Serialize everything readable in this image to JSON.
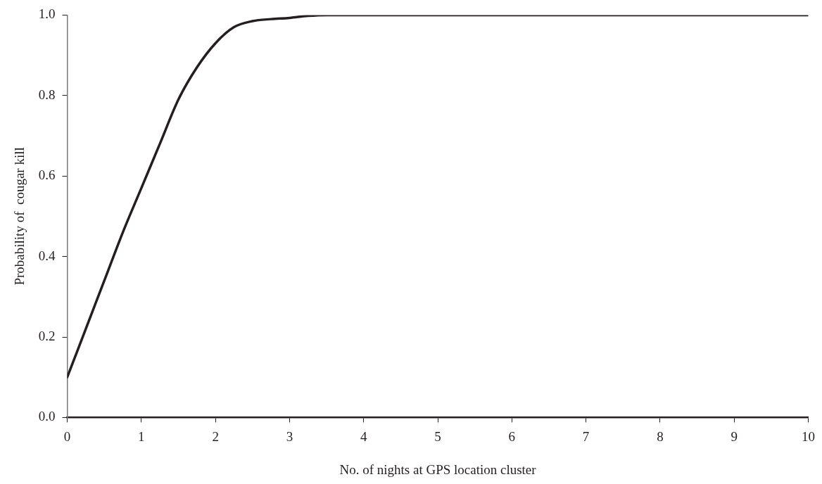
{
  "chart_data": {
    "type": "line",
    "xlabel": "No. of nights at GPS location cluster",
    "ylabel": "Probability of  cougar kill",
    "series": [
      {
        "color": "#231f20",
        "x": [
          0,
          0.25,
          0.5,
          0.75,
          1,
          1.25,
          1.5,
          1.75,
          2,
          2.25,
          2.5,
          2.75,
          3,
          3.25,
          3.5,
          4,
          5,
          6,
          7,
          8,
          9,
          10
        ],
        "values": [
          0.1,
          0.22,
          0.34,
          0.46,
          0.57,
          0.68,
          0.79,
          0.87,
          0.93,
          0.97,
          0.985,
          0.99,
          0.993,
          0.998,
          1.0,
          1.0,
          1.0,
          1.0,
          1.0,
          1.0,
          1.0,
          1.0
        ]
      }
    ],
    "xlim": [
      0,
      10
    ],
    "xticks": [
      0,
      1,
      2,
      3,
      4,
      5,
      6,
      7,
      8,
      9,
      10
    ],
    "ylim": [
      0,
      1
    ],
    "yticks": [
      {
        "value": 0,
        "label": "0.0"
      },
      {
        "value": 0.2,
        "label": "0.2"
      },
      {
        "value": 0.4,
        "label": "0.4"
      },
      {
        "value": 0.6,
        "label": "0.6"
      },
      {
        "value": 0.8,
        "label": "0.8"
      },
      {
        "value": 1,
        "label": "1.0"
      }
    ],
    "grid": false,
    "legend": false,
    "marker": "none",
    "line_style": "solid"
  }
}
